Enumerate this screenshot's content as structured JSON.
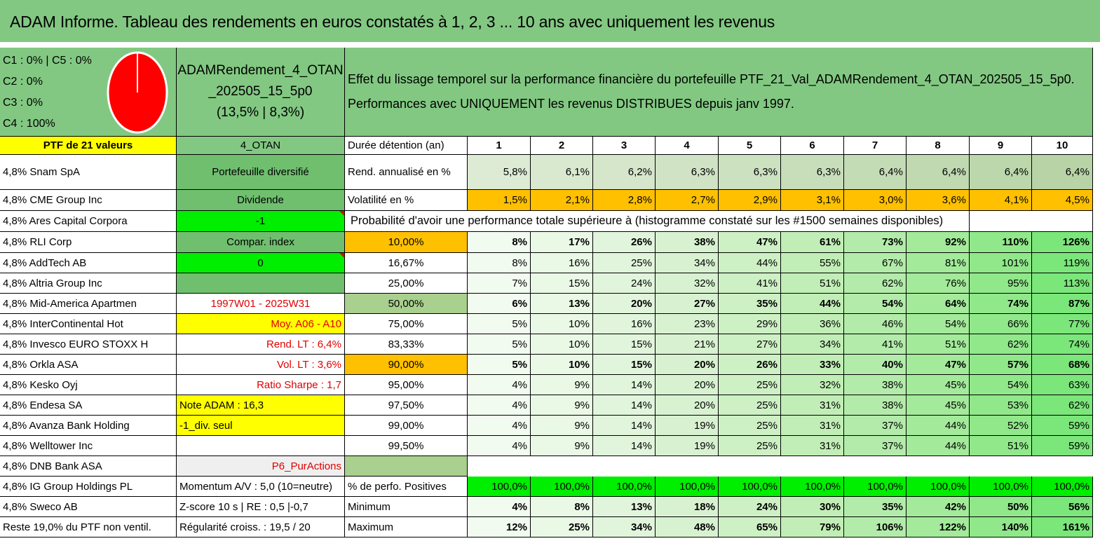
{
  "title": "ADAM Informe. Tableau des rendements en euros constatés à 1, 2, 3 ... 10 ans avec uniquement les revenus",
  "colors": {
    "header_green": "#82c882",
    "yellow": "#ffff00",
    "lime": "#00ee00",
    "orange": "#ffc000",
    "red": "#e00000"
  },
  "allocation": {
    "lines": [
      "C1 : 0% | C5 : 0%",
      "C2 : 0%",
      "C3 : 0%",
      "C4 : 100%"
    ],
    "pie_slices": [
      {
        "name": "C4",
        "value": 100,
        "color": "#ff0000"
      }
    ]
  },
  "portfolio_title": [
    "ADAMRendement_4_OTAN",
    "_202505_15_5p0",
    "(13,5% | 8,3%)"
  ],
  "description": [
    "Effet du lissage temporel sur la performance financière du portefeuille PTF_21_Val_ADAMRendement_4_OTAN_202505_15_5p0.",
    "Performances avec UNIQUEMENT les revenus DISTRIBUES depuis janv 1997."
  ],
  "holdings_header": "PTF de 21 valeurs",
  "holdings": [
    "4,8% Snam SpA",
    "4,8% CME Group Inc",
    "4,8% Ares Capital Corpora",
    "4,8% RLI Corp",
    "4,8% AddTech AB",
    "4,8% Altria Group Inc",
    "4,8% Mid-America Apartmen",
    "4,8% InterContinental Hot",
    "4,8% Invesco EURO STOXX H",
    "4,8% Orkla ASA",
    "4,8% Kesko Oyj",
    "4,8% Endesa SA",
    "4,8% Avanza Bank Holding",
    "4,8% Welltower Inc",
    "4,8% DNB Bank ASA",
    "4,8% IG Group Holdings PL",
    "4,8% Sweco AB",
    "Reste 19,0% du PTF non ventil."
  ],
  "info": {
    "code": "4_OTAN",
    "diversified": "Portefeuille diversifié",
    "dividend": "Dividende",
    "dividend_value": "-1",
    "compar": "Compar. index",
    "compar_value": "0",
    "period": "1997W01 - 2025W31",
    "avg": "Moy. A06 - A10",
    "rend_lt": "Rend. LT : 6,4%",
    "vol_lt": "Vol. LT : 3,6%",
    "sharpe": "Ratio Sharpe : 1,7",
    "note": "Note ADAM : 16,3",
    "div_only": "-1_div. seul",
    "p6": "P6_PurActions",
    "momentum": "Momentum A/V : 5,0 (10=neutre)",
    "zscore": "Z-score 10 s | RE : 0,5 |-0,7",
    "regularity": "Régularité croiss. : 19,5 / 20"
  },
  "table": {
    "duration_label": "Durée détention (an)",
    "years": [
      "1",
      "2",
      "3",
      "4",
      "5",
      "6",
      "7",
      "8",
      "9",
      "10"
    ],
    "rend_label": "Rend. annualisé en %",
    "rend": [
      "5,8%",
      "6,1%",
      "6,2%",
      "6,3%",
      "6,3%",
      "6,3%",
      "6,4%",
      "6,4%",
      "6,4%",
      "6,4%"
    ],
    "vol_label": "Volatilité en %",
    "vol": [
      "1,5%",
      "2,1%",
      "2,8%",
      "2,7%",
      "2,9%",
      "3,1%",
      "3,0%",
      "3,6%",
      "4,1%",
      "4,5%"
    ],
    "prob_label": "Probabilité d'avoir une performance totale supérieure à (histogramme constaté sur les #1500 semaines disponibles)",
    "prob_rows": [
      {
        "p": "10,00%",
        "v": [
          "8%",
          "17%",
          "26%",
          "38%",
          "47%",
          "61%",
          "73%",
          "92%",
          "110%",
          "126%"
        ]
      },
      {
        "p": "16,67%",
        "v": [
          "8%",
          "16%",
          "25%",
          "34%",
          "44%",
          "55%",
          "67%",
          "81%",
          "101%",
          "119%"
        ]
      },
      {
        "p": "25,00%",
        "v": [
          "7%",
          "15%",
          "24%",
          "32%",
          "41%",
          "51%",
          "62%",
          "76%",
          "95%",
          "113%"
        ]
      },
      {
        "p": "50,00%",
        "v": [
          "6%",
          "13%",
          "20%",
          "27%",
          "35%",
          "44%",
          "54%",
          "64%",
          "74%",
          "87%"
        ]
      },
      {
        "p": "75,00%",
        "v": [
          "5%",
          "10%",
          "16%",
          "23%",
          "29%",
          "36%",
          "46%",
          "54%",
          "66%",
          "77%"
        ]
      },
      {
        "p": "83,33%",
        "v": [
          "5%",
          "10%",
          "15%",
          "21%",
          "27%",
          "34%",
          "41%",
          "51%",
          "62%",
          "74%"
        ]
      },
      {
        "p": "90,00%",
        "v": [
          "5%",
          "10%",
          "15%",
          "20%",
          "26%",
          "33%",
          "40%",
          "47%",
          "57%",
          "68%"
        ]
      },
      {
        "p": "95,00%",
        "v": [
          "4%",
          "9%",
          "14%",
          "20%",
          "25%",
          "32%",
          "38%",
          "45%",
          "54%",
          "63%"
        ]
      },
      {
        "p": "97,50%",
        "v": [
          "4%",
          "9%",
          "14%",
          "20%",
          "25%",
          "31%",
          "38%",
          "45%",
          "53%",
          "62%"
        ]
      },
      {
        "p": "99,00%",
        "v": [
          "4%",
          "9%",
          "14%",
          "19%",
          "25%",
          "31%",
          "37%",
          "44%",
          "52%",
          "59%"
        ]
      },
      {
        "p": "99,50%",
        "v": [
          "4%",
          "9%",
          "14%",
          "19%",
          "25%",
          "31%",
          "37%",
          "44%",
          "51%",
          "59%"
        ]
      }
    ],
    "pos_label": "% de perfo. Positives",
    "pos": [
      "100,0%",
      "100,0%",
      "100,0%",
      "100,0%",
      "100,0%",
      "100,0%",
      "100,0%",
      "100,0%",
      "100,0%",
      "100,0%"
    ],
    "min_label": "Minimum",
    "min": [
      "4%",
      "8%",
      "13%",
      "18%",
      "24%",
      "30%",
      "35%",
      "42%",
      "50%",
      "56%"
    ],
    "max_label": "Maximum",
    "max": [
      "12%",
      "25%",
      "34%",
      "48%",
      "65%",
      "79%",
      "106%",
      "122%",
      "140%",
      "161%"
    ]
  }
}
